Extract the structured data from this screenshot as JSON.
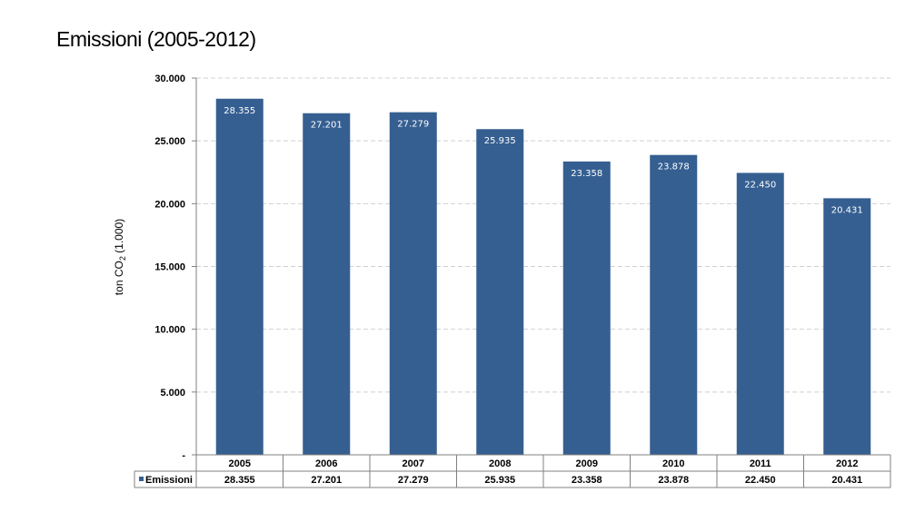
{
  "title": "Emissioni (2005-2012)",
  "chart_data": {
    "type": "bar",
    "title": "Emissioni (2005-2012)",
    "categories": [
      "2005",
      "2006",
      "2007",
      "2008",
      "2009",
      "2010",
      "2011",
      "2012"
    ],
    "series": [
      {
        "name": "Emissioni",
        "values": [
          28355,
          27201,
          27279,
          25935,
          23358,
          23878,
          22450,
          20431
        ],
        "labels": [
          "28.355",
          "27.201",
          "27.279",
          "25.935",
          "23.358",
          "23.878",
          "22.450",
          "20.431"
        ],
        "color": "#355f91"
      }
    ],
    "ylabel": "ton CO2 (1.000)",
    "ylim": [
      0,
      30000
    ],
    "yticks": [
      {
        "value": 0,
        "label": "-"
      },
      {
        "value": 5000,
        "label": "5.000"
      },
      {
        "value": 10000,
        "label": "10.000"
      },
      {
        "value": 15000,
        "label": "15.000"
      },
      {
        "value": 20000,
        "label": "20.000"
      },
      {
        "value": 25000,
        "label": "25.000"
      },
      {
        "value": 30000,
        "label": "30.000"
      }
    ],
    "grid": true,
    "data_table": true
  }
}
